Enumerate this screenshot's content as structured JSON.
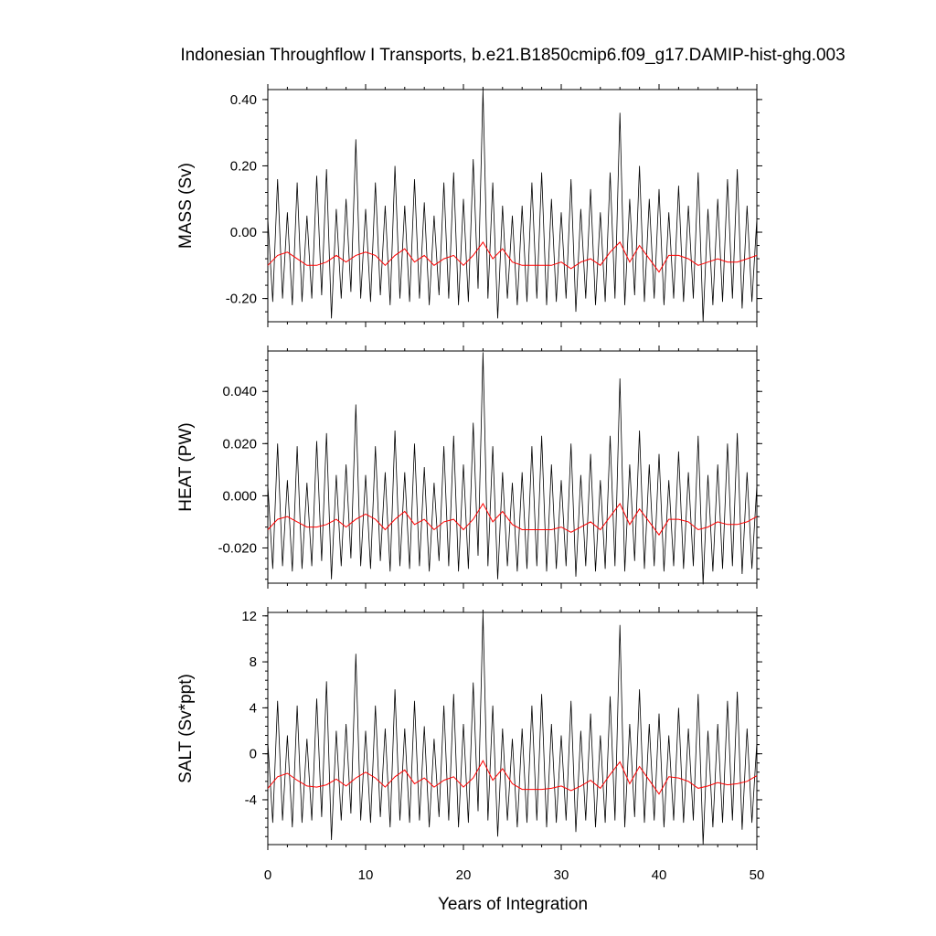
{
  "figure": {
    "title": "Indonesian Throughflow I Transports, b.e21.B1850cmip6.f09_g17.DAMIP-hist-ghg.003",
    "xlabel": "Years of Integration"
  },
  "colors": {
    "raw": "#000000",
    "smooth": "#ff0000"
  },
  "chart_data": [
    {
      "type": "line",
      "ylabel": "MASS (Sv)",
      "xlim": [
        0,
        50
      ],
      "ylim": [
        -0.27,
        0.43
      ],
      "xticks": [
        "0",
        "10",
        "20",
        "30",
        "40",
        "50"
      ],
      "yticks": [
        {
          "v": 0.4,
          "label": "0.40"
        },
        {
          "v": 0.2,
          "label": "0.20"
        },
        {
          "v": 0.0,
          "label": "0.00"
        },
        {
          "v": -0.2,
          "label": "-0.20"
        }
      ],
      "series": [
        {
          "values_x": [
            0,
            0.5,
            1,
            1.5,
            2,
            2.5,
            3,
            3.5,
            4,
            4.5,
            5,
            5.5,
            6,
            6.5,
            7,
            7.5,
            8,
            8.5,
            9,
            9.5,
            10,
            10.5,
            11,
            11.5,
            12,
            12.5,
            13,
            13.5,
            14,
            14.5,
            15,
            15.5,
            16,
            16.5,
            17,
            17.5,
            18,
            18.5,
            19,
            19.5,
            20,
            20.5,
            21,
            21.5,
            22,
            22.5,
            23,
            23.5,
            24,
            24.5,
            25,
            25.5,
            26,
            26.5,
            27,
            27.5,
            28,
            28.5,
            29,
            29.5,
            30,
            30.5,
            31,
            31.5,
            32,
            32.5,
            33,
            33.5,
            34,
            34.5,
            35,
            35.5,
            36,
            36.5,
            37,
            37.5,
            38,
            38.5,
            39,
            39.5,
            40,
            40.5,
            41,
            41.5,
            42,
            42.5,
            43,
            43.5,
            44,
            44.5,
            45,
            45.5,
            46,
            46.5,
            47,
            47.5,
            48,
            48.5,
            49,
            49.5,
            50
          ],
          "values_y": [
            0.04,
            -0.21,
            0.16,
            -0.2,
            0.06,
            -0.22,
            0.15,
            -0.21,
            0.05,
            -0.2,
            0.17,
            -0.19,
            0.19,
            -0.26,
            0.07,
            -0.2,
            0.1,
            -0.18,
            0.28,
            -0.2,
            0.07,
            -0.21,
            0.15,
            -0.19,
            0.08,
            -0.22,
            0.2,
            -0.2,
            0.08,
            -0.21,
            0.16,
            -0.2,
            0.09,
            -0.22,
            0.05,
            -0.19,
            0.15,
            -0.2,
            0.18,
            -0.22,
            0.1,
            -0.21,
            0.22,
            -0.17,
            0.43,
            -0.2,
            0.15,
            -0.26,
            0.08,
            -0.2,
            0.05,
            -0.22,
            0.08,
            -0.21,
            0.15,
            -0.2,
            0.18,
            -0.22,
            0.1,
            -0.21,
            0.06,
            -0.2,
            0.16,
            -0.24,
            0.07,
            -0.2,
            0.13,
            -0.22,
            0.06,
            -0.21,
            0.18,
            -0.2,
            0.36,
            -0.22,
            0.1,
            -0.19,
            0.2,
            -0.21,
            0.1,
            -0.2,
            0.13,
            -0.22,
            0.06,
            -0.2,
            0.14,
            -0.21,
            0.08,
            -0.2,
            0.18,
            -0.27,
            0.07,
            -0.22,
            0.1,
            -0.21,
            0.16,
            -0.2,
            0.19,
            -0.23,
            0.08,
            -0.21,
            0.04
          ]
        },
        {
          "values_x": [
            0,
            1,
            2,
            3,
            4,
            5,
            6,
            7,
            8,
            9,
            10,
            11,
            12,
            13,
            14,
            15,
            16,
            17,
            18,
            19,
            20,
            21,
            22,
            23,
            24,
            25,
            26,
            27,
            28,
            29,
            30,
            31,
            32,
            33,
            34,
            35,
            36,
            37,
            38,
            39,
            40,
            41,
            42,
            43,
            44,
            45,
            46,
            47,
            48,
            49,
            50
          ],
          "values_y": [
            -0.1,
            -0.07,
            -0.06,
            -0.08,
            -0.1,
            -0.1,
            -0.09,
            -0.07,
            -0.09,
            -0.07,
            -0.06,
            -0.07,
            -0.1,
            -0.07,
            -0.05,
            -0.09,
            -0.07,
            -0.1,
            -0.08,
            -0.07,
            -0.1,
            -0.07,
            -0.03,
            -0.08,
            -0.05,
            -0.09,
            -0.1,
            -0.1,
            -0.1,
            -0.1,
            -0.09,
            -0.11,
            -0.09,
            -0.08,
            -0.1,
            -0.06,
            -0.03,
            -0.09,
            -0.04,
            -0.08,
            -0.12,
            -0.07,
            -0.07,
            -0.08,
            -0.1,
            -0.09,
            -0.08,
            -0.09,
            -0.09,
            -0.08,
            -0.07
          ]
        }
      ]
    },
    {
      "type": "line",
      "ylabel": "HEAT (PW)",
      "xlim": [
        0,
        50
      ],
      "ylim": [
        -0.0335,
        0.0555
      ],
      "xticks": [
        "0",
        "10",
        "20",
        "30",
        "40",
        "50"
      ],
      "yticks": [
        {
          "v": 0.04,
          "label": "0.040"
        },
        {
          "v": 0.02,
          "label": "0.020"
        },
        {
          "v": 0.0,
          "label": "0.000"
        },
        {
          "v": -0.02,
          "label": "-0.020"
        }
      ],
      "series": [
        {
          "values_x": [
            0,
            0.5,
            1,
            1.5,
            2,
            2.5,
            3,
            3.5,
            4,
            4.5,
            5,
            5.5,
            6,
            6.5,
            7,
            7.5,
            8,
            8.5,
            9,
            9.5,
            10,
            10.5,
            11,
            11.5,
            12,
            12.5,
            13,
            13.5,
            14,
            14.5,
            15,
            15.5,
            16,
            16.5,
            17,
            17.5,
            18,
            18.5,
            19,
            19.5,
            20,
            20.5,
            21,
            21.5,
            22,
            22.5,
            23,
            23.5,
            24,
            24.5,
            25,
            25.5,
            26,
            26.5,
            27,
            27.5,
            28,
            28.5,
            29,
            29.5,
            30,
            30.5,
            31,
            31.5,
            32,
            32.5,
            33,
            33.5,
            34,
            34.5,
            35,
            35.5,
            36,
            36.5,
            37,
            37.5,
            38,
            38.5,
            39,
            39.5,
            40,
            40.5,
            41,
            41.5,
            42,
            42.5,
            43,
            43.5,
            44,
            44.5,
            45,
            45.5,
            46,
            46.5,
            47,
            47.5,
            48,
            48.5,
            49,
            49.5,
            50
          ],
          "values_y": [
            0.004,
            -0.028,
            0.02,
            -0.027,
            0.006,
            -0.029,
            0.019,
            -0.028,
            0.005,
            -0.027,
            0.021,
            -0.025,
            0.024,
            -0.032,
            0.008,
            -0.027,
            0.012,
            -0.024,
            0.035,
            -0.027,
            0.008,
            -0.028,
            0.019,
            -0.025,
            0.009,
            -0.029,
            0.025,
            -0.027,
            0.009,
            -0.028,
            0.02,
            -0.027,
            0.011,
            -0.029,
            0.005,
            -0.025,
            0.019,
            -0.027,
            0.023,
            -0.029,
            0.012,
            -0.028,
            0.028,
            -0.023,
            0.055,
            -0.027,
            0.019,
            -0.032,
            0.009,
            -0.027,
            0.005,
            -0.029,
            0.009,
            -0.028,
            0.019,
            -0.027,
            0.023,
            -0.029,
            0.012,
            -0.028,
            0.006,
            -0.027,
            0.02,
            -0.031,
            0.008,
            -0.027,
            0.016,
            -0.029,
            0.006,
            -0.028,
            0.023,
            -0.027,
            0.045,
            -0.029,
            0.012,
            -0.025,
            0.025,
            -0.028,
            0.012,
            -0.027,
            0.016,
            -0.029,
            0.006,
            -0.027,
            0.017,
            -0.028,
            0.009,
            -0.027,
            0.023,
            -0.034,
            0.008,
            -0.029,
            0.012,
            -0.028,
            0.02,
            -0.027,
            0.024,
            -0.03,
            0.009,
            -0.028,
            0.004
          ]
        },
        {
          "values_x": [
            0,
            1,
            2,
            3,
            4,
            5,
            6,
            7,
            8,
            9,
            10,
            11,
            12,
            13,
            14,
            15,
            16,
            17,
            18,
            19,
            20,
            21,
            22,
            23,
            24,
            25,
            26,
            27,
            28,
            29,
            30,
            31,
            32,
            33,
            34,
            35,
            36,
            37,
            38,
            39,
            40,
            41,
            42,
            43,
            44,
            45,
            46,
            47,
            48,
            49,
            50
          ],
          "values_y": [
            -0.013,
            -0.009,
            -0.008,
            -0.01,
            -0.012,
            -0.012,
            -0.011,
            -0.009,
            -0.012,
            -0.009,
            -0.007,
            -0.009,
            -0.013,
            -0.009,
            -0.006,
            -0.011,
            -0.009,
            -0.013,
            -0.01,
            -0.009,
            -0.013,
            -0.009,
            -0.003,
            -0.01,
            -0.006,
            -0.011,
            -0.013,
            -0.013,
            -0.013,
            -0.013,
            -0.012,
            -0.014,
            -0.012,
            -0.01,
            -0.013,
            -0.008,
            -0.003,
            -0.011,
            -0.005,
            -0.01,
            -0.015,
            -0.009,
            -0.009,
            -0.01,
            -0.013,
            -0.012,
            -0.01,
            -0.011,
            -0.011,
            -0.01,
            -0.008
          ]
        }
      ]
    },
    {
      "type": "line",
      "ylabel": "SALT (Sv*ppt)",
      "xlim": [
        0,
        50
      ],
      "ylim": [
        -7.9,
        12.3
      ],
      "xticks": [
        "0",
        "10",
        "20",
        "30",
        "40",
        "50"
      ],
      "yticks": [
        {
          "v": 12,
          "label": "12"
        },
        {
          "v": 8,
          "label": "8"
        },
        {
          "v": 4,
          "label": "4"
        },
        {
          "v": 0,
          "label": "0"
        },
        {
          "v": -4,
          "label": "-4"
        }
      ],
      "series": [
        {
          "values_x": [
            0,
            0.5,
            1,
            1.5,
            2,
            2.5,
            3,
            3.5,
            4,
            4.5,
            5,
            5.5,
            6,
            6.5,
            7,
            7.5,
            8,
            8.5,
            9,
            9.5,
            10,
            10.5,
            11,
            11.5,
            12,
            12.5,
            13,
            13.5,
            14,
            14.5,
            15,
            15.5,
            16,
            16.5,
            17,
            17.5,
            18,
            18.5,
            19,
            19.5,
            20,
            20.5,
            21,
            21.5,
            22,
            22.5,
            23,
            23.5,
            24,
            24.5,
            25,
            25.5,
            26,
            26.5,
            27,
            27.5,
            28,
            28.5,
            29,
            29.5,
            30,
            30.5,
            31,
            31.5,
            32,
            32.5,
            33,
            33.5,
            34,
            34.5,
            35,
            35.5,
            36,
            36.5,
            37,
            37.5,
            38,
            38.5,
            39,
            39.5,
            40,
            40.5,
            41,
            41.5,
            42,
            42.5,
            43,
            43.5,
            44,
            44.5,
            45,
            45.5,
            46,
            46.5,
            47,
            47.5,
            48,
            48.5,
            49,
            49.5,
            50
          ],
          "values_y": [
            1.0,
            -6.0,
            4.6,
            -5.8,
            1.6,
            -6.4,
            4.2,
            -6.0,
            1.3,
            -5.8,
            4.8,
            -5.5,
            6.3,
            -7.5,
            2.0,
            -5.8,
            2.6,
            -5.2,
            8.7,
            -5.8,
            2.0,
            -6.0,
            4.2,
            -5.5,
            2.2,
            -6.4,
            5.6,
            -5.8,
            2.2,
            -6.0,
            4.6,
            -5.8,
            2.4,
            -6.4,
            1.3,
            -5.5,
            4.2,
            -5.8,
            5.2,
            -6.4,
            2.6,
            -6.0,
            6.2,
            -5.0,
            12.3,
            -5.8,
            4.2,
            -7.2,
            2.2,
            -5.8,
            1.3,
            -6.4,
            2.2,
            -6.0,
            4.2,
            -5.8,
            5.2,
            -6.4,
            2.6,
            -6.0,
            1.6,
            -5.8,
            4.6,
            -6.8,
            2.0,
            -5.8,
            3.5,
            -6.4,
            1.6,
            -6.0,
            5.0,
            -5.8,
            11.2,
            -6.4,
            2.6,
            -5.5,
            5.6,
            -6.0,
            2.6,
            -5.8,
            3.5,
            -6.4,
            1.6,
            -5.8,
            4.0,
            -6.0,
            2.2,
            -5.8,
            5.2,
            -7.9,
            2.0,
            -6.4,
            2.6,
            -6.0,
            4.6,
            -5.8,
            5.4,
            -6.6,
            2.2,
            -6.0,
            1.0
          ]
        },
        {
          "values_x": [
            0,
            1,
            2,
            3,
            4,
            5,
            6,
            7,
            8,
            9,
            10,
            11,
            12,
            13,
            14,
            15,
            16,
            17,
            18,
            19,
            20,
            21,
            22,
            23,
            24,
            25,
            26,
            27,
            28,
            29,
            30,
            31,
            32,
            33,
            34,
            35,
            36,
            37,
            38,
            39,
            40,
            41,
            42,
            43,
            44,
            45,
            46,
            47,
            48,
            49,
            50
          ],
          "values_y": [
            -3.0,
            -2.0,
            -1.7,
            -2.3,
            -2.8,
            -2.9,
            -2.7,
            -2.2,
            -2.8,
            -2.1,
            -1.6,
            -2.1,
            -2.9,
            -2.0,
            -1.4,
            -2.6,
            -2.1,
            -2.9,
            -2.3,
            -2.0,
            -2.9,
            -2.1,
            -0.6,
            -2.3,
            -1.3,
            -2.6,
            -3.1,
            -3.1,
            -3.1,
            -3.0,
            -2.8,
            -3.2,
            -2.8,
            -2.3,
            -3.0,
            -1.8,
            -0.7,
            -2.6,
            -1.1,
            -2.3,
            -3.5,
            -2.0,
            -2.1,
            -2.4,
            -3.0,
            -2.8,
            -2.5,
            -2.7,
            -2.6,
            -2.4,
            -1.9
          ]
        }
      ]
    }
  ]
}
